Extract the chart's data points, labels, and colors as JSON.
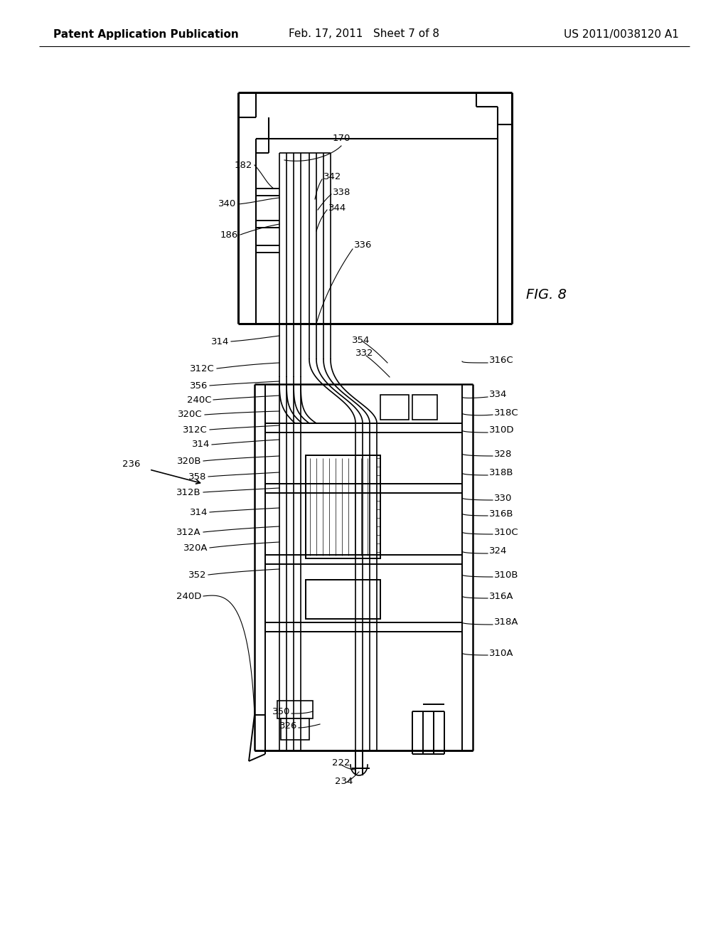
{
  "bg": "#ffffff",
  "lc": "#000000",
  "hdr_l": "Patent Application Publication",
  "hdr_m": "Feb. 17, 2011   Sheet 7 of 8",
  "hdr_r": "US 2011/0038120 A1",
  "hdr_fs": 11,
  "lbl_fs": 9.5
}
